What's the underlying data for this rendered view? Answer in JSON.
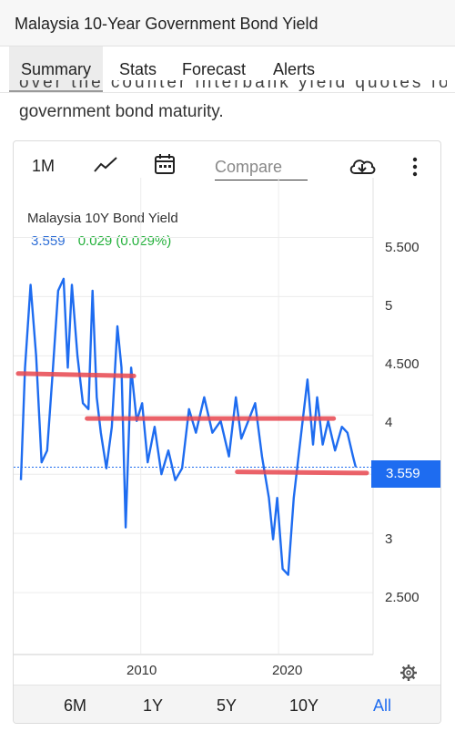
{
  "title": "Malaysia 10-Year Government Bond Yield",
  "tabs": [
    "Summary",
    "Stats",
    "Forecast",
    "Alerts"
  ],
  "description_partial": "over the counter interbank yield quotes for this",
  "description_line2": "government bond maturity.",
  "toolbar": {
    "period": "1M",
    "compare_placeholder": "Compare",
    "icons": [
      "line-chart-icon",
      "calendar-icon",
      "download-cloud-icon",
      "more-vert-icon"
    ]
  },
  "legend": {
    "name": "Malaysia 10Y Bond Yield",
    "value": "3.559",
    "change": "0.029 (0.029%)"
  },
  "price_label": "3.559",
  "ranges": [
    "6M",
    "1Y",
    "5Y",
    "10Y",
    "All"
  ],
  "active_range": "All",
  "colors": {
    "line": "#1e6cf0",
    "annotation": "#e8474f",
    "change": "#22b03a"
  },
  "chart_data": {
    "type": "line",
    "title": "Malaysia 10Y Bond Yield",
    "xlabel": "",
    "ylabel": "",
    "x_tick_labels": [
      "2010",
      "2020"
    ],
    "y_tick_labels": [
      "5.500",
      "5",
      "4.500",
      "4",
      "3",
      "2.500"
    ],
    "xlim": [
      2001.3,
      2026.4
    ],
    "ylim": [
      2.0,
      5.85
    ],
    "grid": true,
    "last_value": 3.559,
    "series": [
      {
        "name": "Malaysia 10Y Bond Yield",
        "points": [
          [
            2001.3,
            3.45
          ],
          [
            2001.6,
            4.4
          ],
          [
            2002.0,
            5.1
          ],
          [
            2002.4,
            4.5
          ],
          [
            2002.8,
            3.6
          ],
          [
            2003.2,
            3.7
          ],
          [
            2003.6,
            4.35
          ],
          [
            2004.0,
            5.05
          ],
          [
            2004.4,
            5.15
          ],
          [
            2004.7,
            4.4
          ],
          [
            2005.0,
            5.1
          ],
          [
            2005.4,
            4.5
          ],
          [
            2005.8,
            4.1
          ],
          [
            2006.2,
            4.05
          ],
          [
            2006.5,
            5.05
          ],
          [
            2006.8,
            4.15
          ],
          [
            2007.1,
            3.85
          ],
          [
            2007.5,
            3.55
          ],
          [
            2007.9,
            3.9
          ],
          [
            2008.3,
            4.75
          ],
          [
            2008.6,
            4.4
          ],
          [
            2008.9,
            3.05
          ],
          [
            2009.3,
            4.4
          ],
          [
            2009.7,
            3.95
          ],
          [
            2010.1,
            4.1
          ],
          [
            2010.5,
            3.6
          ],
          [
            2011.0,
            3.9
          ],
          [
            2011.5,
            3.5
          ],
          [
            2012.0,
            3.7
          ],
          [
            2012.5,
            3.45
          ],
          [
            2013.0,
            3.55
          ],
          [
            2013.5,
            4.05
          ],
          [
            2014.0,
            3.85
          ],
          [
            2014.6,
            4.15
          ],
          [
            2015.2,
            3.85
          ],
          [
            2015.8,
            3.95
          ],
          [
            2016.4,
            3.65
          ],
          [
            2016.9,
            4.15
          ],
          [
            2017.3,
            3.8
          ],
          [
            2017.8,
            3.95
          ],
          [
            2018.3,
            4.1
          ],
          [
            2018.8,
            3.65
          ],
          [
            2019.3,
            3.3
          ],
          [
            2019.6,
            2.95
          ],
          [
            2019.9,
            3.3
          ],
          [
            2020.3,
            2.7
          ],
          [
            2020.7,
            2.65
          ],
          [
            2021.1,
            3.3
          ],
          [
            2021.6,
            3.8
          ],
          [
            2022.1,
            4.3
          ],
          [
            2022.5,
            3.75
          ],
          [
            2022.8,
            4.15
          ],
          [
            2023.2,
            3.75
          ],
          [
            2023.6,
            3.95
          ],
          [
            2024.1,
            3.7
          ],
          [
            2024.6,
            3.9
          ],
          [
            2025.0,
            3.85
          ],
          [
            2025.4,
            3.65
          ],
          [
            2025.6,
            3.559
          ]
        ]
      }
    ],
    "annotation_lines": [
      {
        "x": [
          2001.1,
          2009.5
        ],
        "y": [
          4.35,
          4.33
        ]
      },
      {
        "x": [
          2006.1,
          2024.0
        ],
        "y": [
          3.97,
          3.97
        ]
      },
      {
        "x": [
          2017.0,
          2026.4
        ],
        "y": [
          3.52,
          3.51
        ]
      }
    ],
    "reference_line": 3.559
  }
}
